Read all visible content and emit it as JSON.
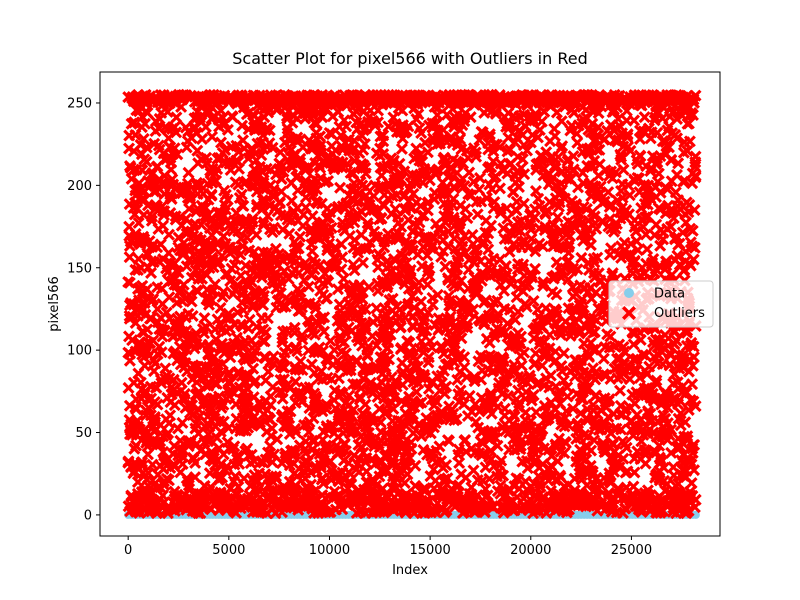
{
  "chart_data": {
    "type": "scatter",
    "title": "Scatter Plot for pixel566 with Outliers in Red",
    "xlabel": "Index",
    "ylabel": "pixel566",
    "xlim": [
      -1400,
      29400
    ],
    "ylim": [
      -12.8,
      268.8
    ],
    "x_ticks": [
      0,
      5000,
      10000,
      15000,
      20000,
      25000
    ],
    "y_ticks": [
      0,
      50,
      100,
      150,
      200,
      250
    ],
    "grid": false,
    "legend_position": "center-right",
    "series": [
      {
        "name": "Data",
        "color": "#87ceeb",
        "marker": "circle",
        "x_range": [
          0,
          28200
        ],
        "y_values": [
          0
        ],
        "description_values": "points along y=0"
      },
      {
        "name": "Outliers",
        "color": "#ff0000",
        "marker": "X",
        "x_range": [
          0,
          28200
        ],
        "y_range": [
          1,
          255
        ]
      }
    ]
  }
}
